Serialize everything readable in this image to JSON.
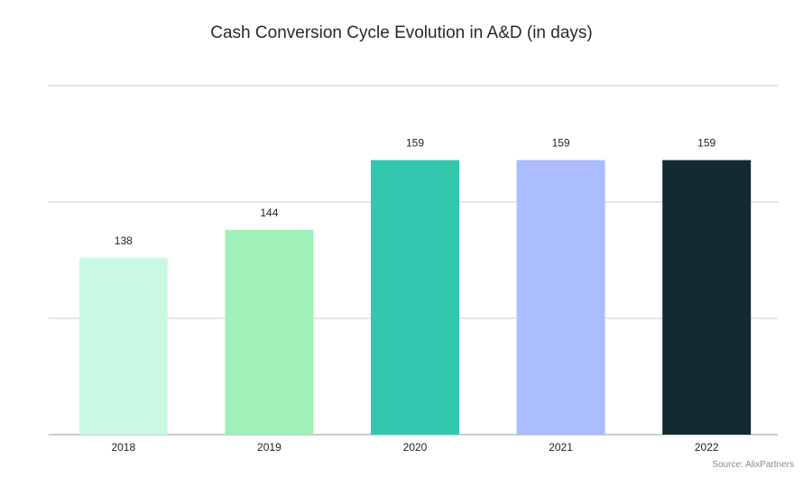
{
  "chart_data": {
    "type": "bar",
    "title": "Cash Conversion Cycle Evolution in A&D (in days)",
    "categories": [
      "2018",
      "2019",
      "2020",
      "2021",
      "2022"
    ],
    "values": [
      138,
      144,
      159,
      159,
      159
    ],
    "colors": [
      "#c9f8e3",
      "#a0f0b9",
      "#32c8ad",
      "#abbcff",
      "#122a30"
    ],
    "xlabel": "",
    "ylabel": "",
    "ylim": [
      100,
      175
    ],
    "gridlines": [
      100,
      125,
      150,
      175
    ],
    "grid": true,
    "source": "Source: AlixPartners"
  }
}
